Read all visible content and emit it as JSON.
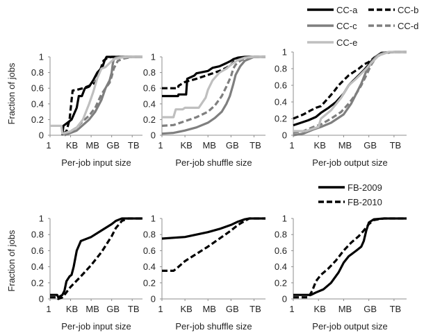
{
  "ylabel": "Fraction of jobs",
  "legends": {
    "top": [
      {
        "label": "CC-a",
        "color": "#000000",
        "dash": "solid"
      },
      {
        "label": "CC-b",
        "color": "#000000",
        "dash": "dashed"
      },
      {
        "label": "CC-c",
        "color": "#7f7f7f",
        "dash": "solid"
      },
      {
        "label": "CC-d",
        "color": "#7f7f7f",
        "dash": "dashed"
      },
      {
        "label": "CC-e",
        "color": "#bfbfbf",
        "dash": "solid"
      }
    ],
    "bottom": [
      {
        "label": "FB-2009",
        "color": "#000000",
        "dash": "solid"
      },
      {
        "label": "FB-2010",
        "color": "#000000",
        "dash": "dashed"
      }
    ]
  },
  "chart_data": [
    {
      "type": "line",
      "xlabel": "Per-job input size",
      "ylabel": "Fraction of jobs",
      "x_ticks": [
        "1",
        "KB",
        "MB",
        "GB",
        "TB"
      ],
      "y_ticks": [
        "0",
        "0.2",
        "0.4",
        "0.6",
        "0.8",
        "1"
      ],
      "xlim": [
        0,
        4.5
      ],
      "ylim": [
        0,
        1
      ],
      "series": [
        {
          "name": "CC-a",
          "x": [
            0.6,
            0.65,
            0.8,
            0.9,
            1.05,
            1.3,
            1.4,
            1.55,
            1.7,
            1.9,
            2.1,
            2.3,
            2.55,
            2.65,
            2.75,
            3.0,
            3.3,
            3.7,
            4.5
          ],
          "y": [
            0,
            0.12,
            0.15,
            0.17,
            0.2,
            0.35,
            0.5,
            0.5,
            0.6,
            0.62,
            0.7,
            0.8,
            0.87,
            0.95,
            1.0,
            1.0,
            1.0,
            1.0,
            1.0
          ]
        },
        {
          "name": "CC-b",
          "x": [
            0.65,
            0.8,
            0.95,
            1.05,
            1.1,
            1.3,
            1.6,
            1.9,
            2.2,
            2.4,
            2.6,
            2.8,
            3.0,
            3.1,
            3.3,
            3.7,
            4.5
          ],
          "y": [
            0.02,
            0.05,
            0.2,
            0.45,
            0.57,
            0.58,
            0.6,
            0.63,
            0.67,
            0.8,
            0.95,
            0.99,
            1.0,
            1.0,
            1.0,
            1.0,
            1.0
          ]
        },
        {
          "name": "CC-c",
          "x": [
            0.7,
            1.0,
            1.3,
            1.6,
            1.9,
            2.2,
            2.5,
            2.7,
            2.8,
            2.9,
            3.0,
            3.05,
            3.1,
            3.2,
            3.5,
            3.8,
            4.5
          ],
          "y": [
            0,
            0.03,
            0.06,
            0.13,
            0.2,
            0.3,
            0.45,
            0.6,
            0.65,
            0.7,
            0.8,
            0.9,
            0.97,
            0.99,
            1.0,
            1.0,
            1.0
          ]
        },
        {
          "name": "CC-d",
          "x": [
            0.7,
            1.0,
            1.3,
            1.6,
            1.9,
            2.2,
            2.5,
            2.7,
            2.9,
            3.0,
            3.1,
            3.3,
            3.6,
            4.0,
            4.5
          ],
          "y": [
            0,
            0.05,
            0.1,
            0.18,
            0.25,
            0.35,
            0.52,
            0.6,
            0.67,
            0.75,
            0.85,
            0.95,
            0.98,
            1.0,
            1.0
          ]
        },
        {
          "name": "CC-e",
          "x": [
            0,
            0.2,
            0.3,
            0.55,
            0.6,
            1.0,
            1.3,
            1.6,
            1.9,
            2.1,
            2.3,
            2.5,
            2.7,
            2.9,
            3.1,
            3.4,
            3.8,
            4.5
          ],
          "y": [
            0.12,
            0.12,
            0.12,
            0.12,
            0.02,
            0.05,
            0.1,
            0.2,
            0.4,
            0.55,
            0.73,
            0.85,
            0.87,
            0.92,
            0.97,
            0.99,
            1.0,
            1.0
          ]
        }
      ]
    },
    {
      "type": "line",
      "xlabel": "Per-job shuffle size",
      "ylabel": "Fraction of jobs",
      "x_ticks": [
        "1",
        "KB",
        "MB",
        "GB",
        "TB"
      ],
      "y_ticks": [
        "0",
        "0.2",
        "0.4",
        "0.6",
        "0.8",
        "1"
      ],
      "xlim": [
        0,
        4.5
      ],
      "ylim": [
        0,
        1
      ],
      "series": [
        {
          "name": "CC-a",
          "x": [
            0,
            0.7,
            0.72,
            1.05,
            1.1,
            1.4,
            1.5,
            2.0,
            2.2,
            2.5,
            2.8,
            3.0,
            3.1,
            3.3,
            3.6,
            4.0,
            4.5
          ],
          "y": [
            0.5,
            0.5,
            0.52,
            0.52,
            0.72,
            0.76,
            0.79,
            0.82,
            0.86,
            0.88,
            0.92,
            0.95,
            0.97,
            0.99,
            1.0,
            1.0,
            1.0
          ]
        },
        {
          "name": "CC-b",
          "x": [
            0,
            0.7,
            0.72,
            1.0,
            1.5,
            2.0,
            2.5,
            2.8,
            3.0,
            3.1,
            3.2,
            3.6,
            4.0,
            4.5
          ],
          "y": [
            0.6,
            0.6,
            0.63,
            0.68,
            0.72,
            0.77,
            0.82,
            0.86,
            0.9,
            0.93,
            0.96,
            0.99,
            1.0,
            1.0
          ]
        },
        {
          "name": "CC-c",
          "x": [
            0,
            0.5,
            1.0,
            1.5,
            2.0,
            2.3,
            2.6,
            2.8,
            2.95,
            3.1,
            3.2,
            3.4,
            3.6,
            4.0,
            4.5
          ],
          "y": [
            0.02,
            0.03,
            0.06,
            0.1,
            0.16,
            0.22,
            0.3,
            0.4,
            0.5,
            0.65,
            0.77,
            0.88,
            0.95,
            1.0,
            1.0
          ]
        },
        {
          "name": "CC-d",
          "x": [
            0,
            0.5,
            1.0,
            1.5,
            2.0,
            2.3,
            2.6,
            2.8,
            3.0,
            3.1,
            3.2,
            3.4,
            3.7,
            4.0,
            4.5
          ],
          "y": [
            0.12,
            0.13,
            0.18,
            0.23,
            0.3,
            0.38,
            0.5,
            0.62,
            0.75,
            0.85,
            0.9,
            0.95,
            0.99,
            1.0,
            1.0
          ]
        },
        {
          "name": "CC-e",
          "x": [
            0,
            0.5,
            0.6,
            0.9,
            1.0,
            1.3,
            1.6,
            1.9,
            2.0,
            2.2,
            2.5,
            2.8,
            3.0,
            3.3,
            3.6,
            4.0,
            4.5
          ],
          "y": [
            0.23,
            0.23,
            0.33,
            0.33,
            0.35,
            0.35,
            0.35,
            0.48,
            0.58,
            0.7,
            0.8,
            0.85,
            0.9,
            0.96,
            0.99,
            1.0,
            1.0
          ]
        }
      ]
    },
    {
      "type": "line",
      "xlabel": "Per-job output size",
      "ylabel": "Fraction of jobs",
      "x_ticks": [
        "1",
        "KB",
        "MB",
        "GB",
        "TB"
      ],
      "y_ticks": [
        "0",
        "0.2",
        "0.4",
        "0.6",
        "0.8",
        "1"
      ],
      "xlim": [
        0,
        4.5
      ],
      "ylim": [
        0,
        1
      ],
      "series": [
        {
          "name": "CC-a",
          "x": [
            0,
            0.3,
            0.6,
            0.9,
            1.1,
            1.4,
            1.7,
            2.0,
            2.2,
            2.4,
            2.6,
            2.8,
            3.0,
            3.2,
            3.5,
            4.0,
            4.5
          ],
          "y": [
            0.12,
            0.15,
            0.18,
            0.22,
            0.27,
            0.33,
            0.4,
            0.5,
            0.6,
            0.66,
            0.72,
            0.78,
            0.85,
            0.93,
            0.99,
            1.0,
            1.0
          ]
        },
        {
          "name": "CC-b",
          "x": [
            0,
            0.4,
            0.7,
            0.9,
            1.1,
            1.4,
            1.6,
            1.8,
            2.0,
            2.2,
            2.4,
            2.6,
            2.8,
            3.0,
            3.3,
            3.6,
            4.0,
            4.5
          ],
          "y": [
            0.2,
            0.25,
            0.3,
            0.33,
            0.35,
            0.45,
            0.52,
            0.6,
            0.66,
            0.72,
            0.76,
            0.8,
            0.85,
            0.88,
            0.95,
            0.99,
            1.0,
            1.0
          ]
        },
        {
          "name": "CC-c",
          "x": [
            0,
            0.4,
            0.8,
            1.1,
            1.5,
            2.0,
            2.3,
            2.5,
            2.7,
            2.9,
            3.1,
            3.3,
            3.5,
            3.8,
            4.2,
            4.5
          ],
          "y": [
            0,
            0.02,
            0.07,
            0.1,
            0.15,
            0.25,
            0.38,
            0.5,
            0.62,
            0.77,
            0.88,
            0.95,
            0.98,
            1.0,
            1.0,
            1.0
          ]
        },
        {
          "name": "CC-d",
          "x": [
            0,
            0.4,
            0.8,
            1.1,
            1.5,
            1.9,
            2.2,
            2.5,
            2.7,
            2.9,
            3.1,
            3.3,
            3.6,
            4.0,
            4.5
          ],
          "y": [
            0.03,
            0.05,
            0.1,
            0.13,
            0.2,
            0.28,
            0.38,
            0.5,
            0.6,
            0.72,
            0.85,
            0.94,
            0.99,
            1.0,
            1.0
          ]
        },
        {
          "name": "CC-e",
          "x": [
            0,
            0.5,
            0.8,
            1.0,
            1.1,
            1.5,
            1.9,
            2.2,
            2.5,
            2.7,
            2.9,
            3.1,
            3.4,
            3.8,
            4.5
          ],
          "y": [
            0.05,
            0.05,
            0.08,
            0.1,
            0.2,
            0.3,
            0.45,
            0.6,
            0.68,
            0.74,
            0.8,
            0.87,
            0.96,
            1.0,
            1.0
          ]
        }
      ]
    },
    {
      "type": "line",
      "xlabel": "Per-job input size",
      "ylabel": "Fraction of jobs",
      "x_ticks": [
        "1",
        "KB",
        "MB",
        "GB",
        "TB"
      ],
      "y_ticks": [
        "0",
        "0.2",
        "0.4",
        "0.6",
        "0.8",
        "1"
      ],
      "xlim": [
        0,
        4.5
      ],
      "ylim": [
        0,
        1
      ],
      "series": [
        {
          "name": "FB-2009",
          "x": [
            0,
            0.35,
            0.4,
            0.6,
            0.7,
            0.8,
            0.95,
            1.05,
            1.15,
            1.3,
            1.5,
            1.6,
            2.0,
            2.5,
            3.0,
            3.2,
            3.5,
            4.0,
            4.5
          ],
          "y": [
            0.05,
            0.05,
            0.02,
            0.05,
            0.1,
            0.22,
            0.28,
            0.3,
            0.4,
            0.6,
            0.72,
            0.73,
            0.77,
            0.85,
            0.93,
            0.97,
            1.0,
            1.0,
            1.0
          ]
        },
        {
          "name": "FB-2010",
          "x": [
            0,
            0.35,
            0.4,
            0.6,
            0.7,
            1.0,
            1.5,
            2.0,
            2.5,
            3.0,
            3.2,
            3.5,
            3.8,
            4.0,
            4.5
          ],
          "y": [
            0.02,
            0.02,
            0.0,
            0.02,
            0.05,
            0.15,
            0.28,
            0.42,
            0.58,
            0.78,
            0.88,
            0.97,
            1.0,
            1.0,
            1.0
          ]
        }
      ]
    },
    {
      "type": "line",
      "xlabel": "Per-job shuffle size",
      "ylabel": "Fraction of jobs",
      "x_ticks": [
        "1",
        "KB",
        "MB",
        "GB",
        "TB"
      ],
      "y_ticks": [
        "0",
        "0.2",
        "0.4",
        "0.6",
        "0.8",
        "1"
      ],
      "xlim": [
        0,
        4.5
      ],
      "ylim": [
        0,
        1
      ],
      "series": [
        {
          "name": "FB-2009",
          "x": [
            0,
            0.5,
            1.0,
            1.5,
            2.0,
            2.5,
            3.0,
            3.3,
            3.6,
            3.8,
            4.0,
            4.5
          ],
          "y": [
            0.75,
            0.76,
            0.77,
            0.8,
            0.83,
            0.87,
            0.92,
            0.96,
            0.99,
            1.0,
            1.0,
            1.0
          ]
        },
        {
          "name": "FB-2010",
          "x": [
            0,
            0.5,
            0.6,
            0.8,
            1.0,
            1.5,
            2.0,
            2.5,
            3.0,
            3.3,
            3.6,
            3.8,
            4.0,
            4.5
          ],
          "y": [
            0.35,
            0.35,
            0.37,
            0.42,
            0.47,
            0.56,
            0.65,
            0.75,
            0.85,
            0.92,
            0.97,
            1.0,
            1.0,
            1.0
          ]
        }
      ]
    },
    {
      "type": "line",
      "xlabel": "Per-job output size",
      "ylabel": "Fraction of jobs",
      "x_ticks": [
        "1",
        "KB",
        "MB",
        "GB",
        "TB"
      ],
      "y_ticks": [
        "0",
        "0.2",
        "0.4",
        "0.6",
        "0.8",
        "1"
      ],
      "xlim": [
        0,
        4.5
      ],
      "ylim": [
        0,
        1
      ],
      "series": [
        {
          "name": "FB-2009",
          "x": [
            0,
            0.5,
            0.7,
            0.9,
            1.2,
            1.5,
            1.8,
            2.0,
            2.2,
            2.5,
            2.7,
            2.8,
            2.9,
            3.0,
            3.2,
            3.6,
            4.0,
            4.5
          ],
          "y": [
            0.05,
            0.05,
            0.05,
            0.08,
            0.12,
            0.2,
            0.33,
            0.45,
            0.53,
            0.6,
            0.65,
            0.72,
            0.85,
            0.95,
            0.99,
            1.0,
            1.0,
            1.0
          ]
        },
        {
          "name": "FB-2010",
          "x": [
            0,
            0.6,
            0.75,
            0.9,
            1.1,
            1.4,
            1.7,
            2.0,
            2.3,
            2.6,
            2.8,
            3.0,
            3.2,
            3.6,
            4.0,
            4.5
          ],
          "y": [
            0.02,
            0.02,
            0.1,
            0.22,
            0.3,
            0.38,
            0.48,
            0.6,
            0.7,
            0.78,
            0.85,
            0.93,
            0.98,
            1.0,
            1.0,
            1.0
          ]
        }
      ]
    }
  ]
}
